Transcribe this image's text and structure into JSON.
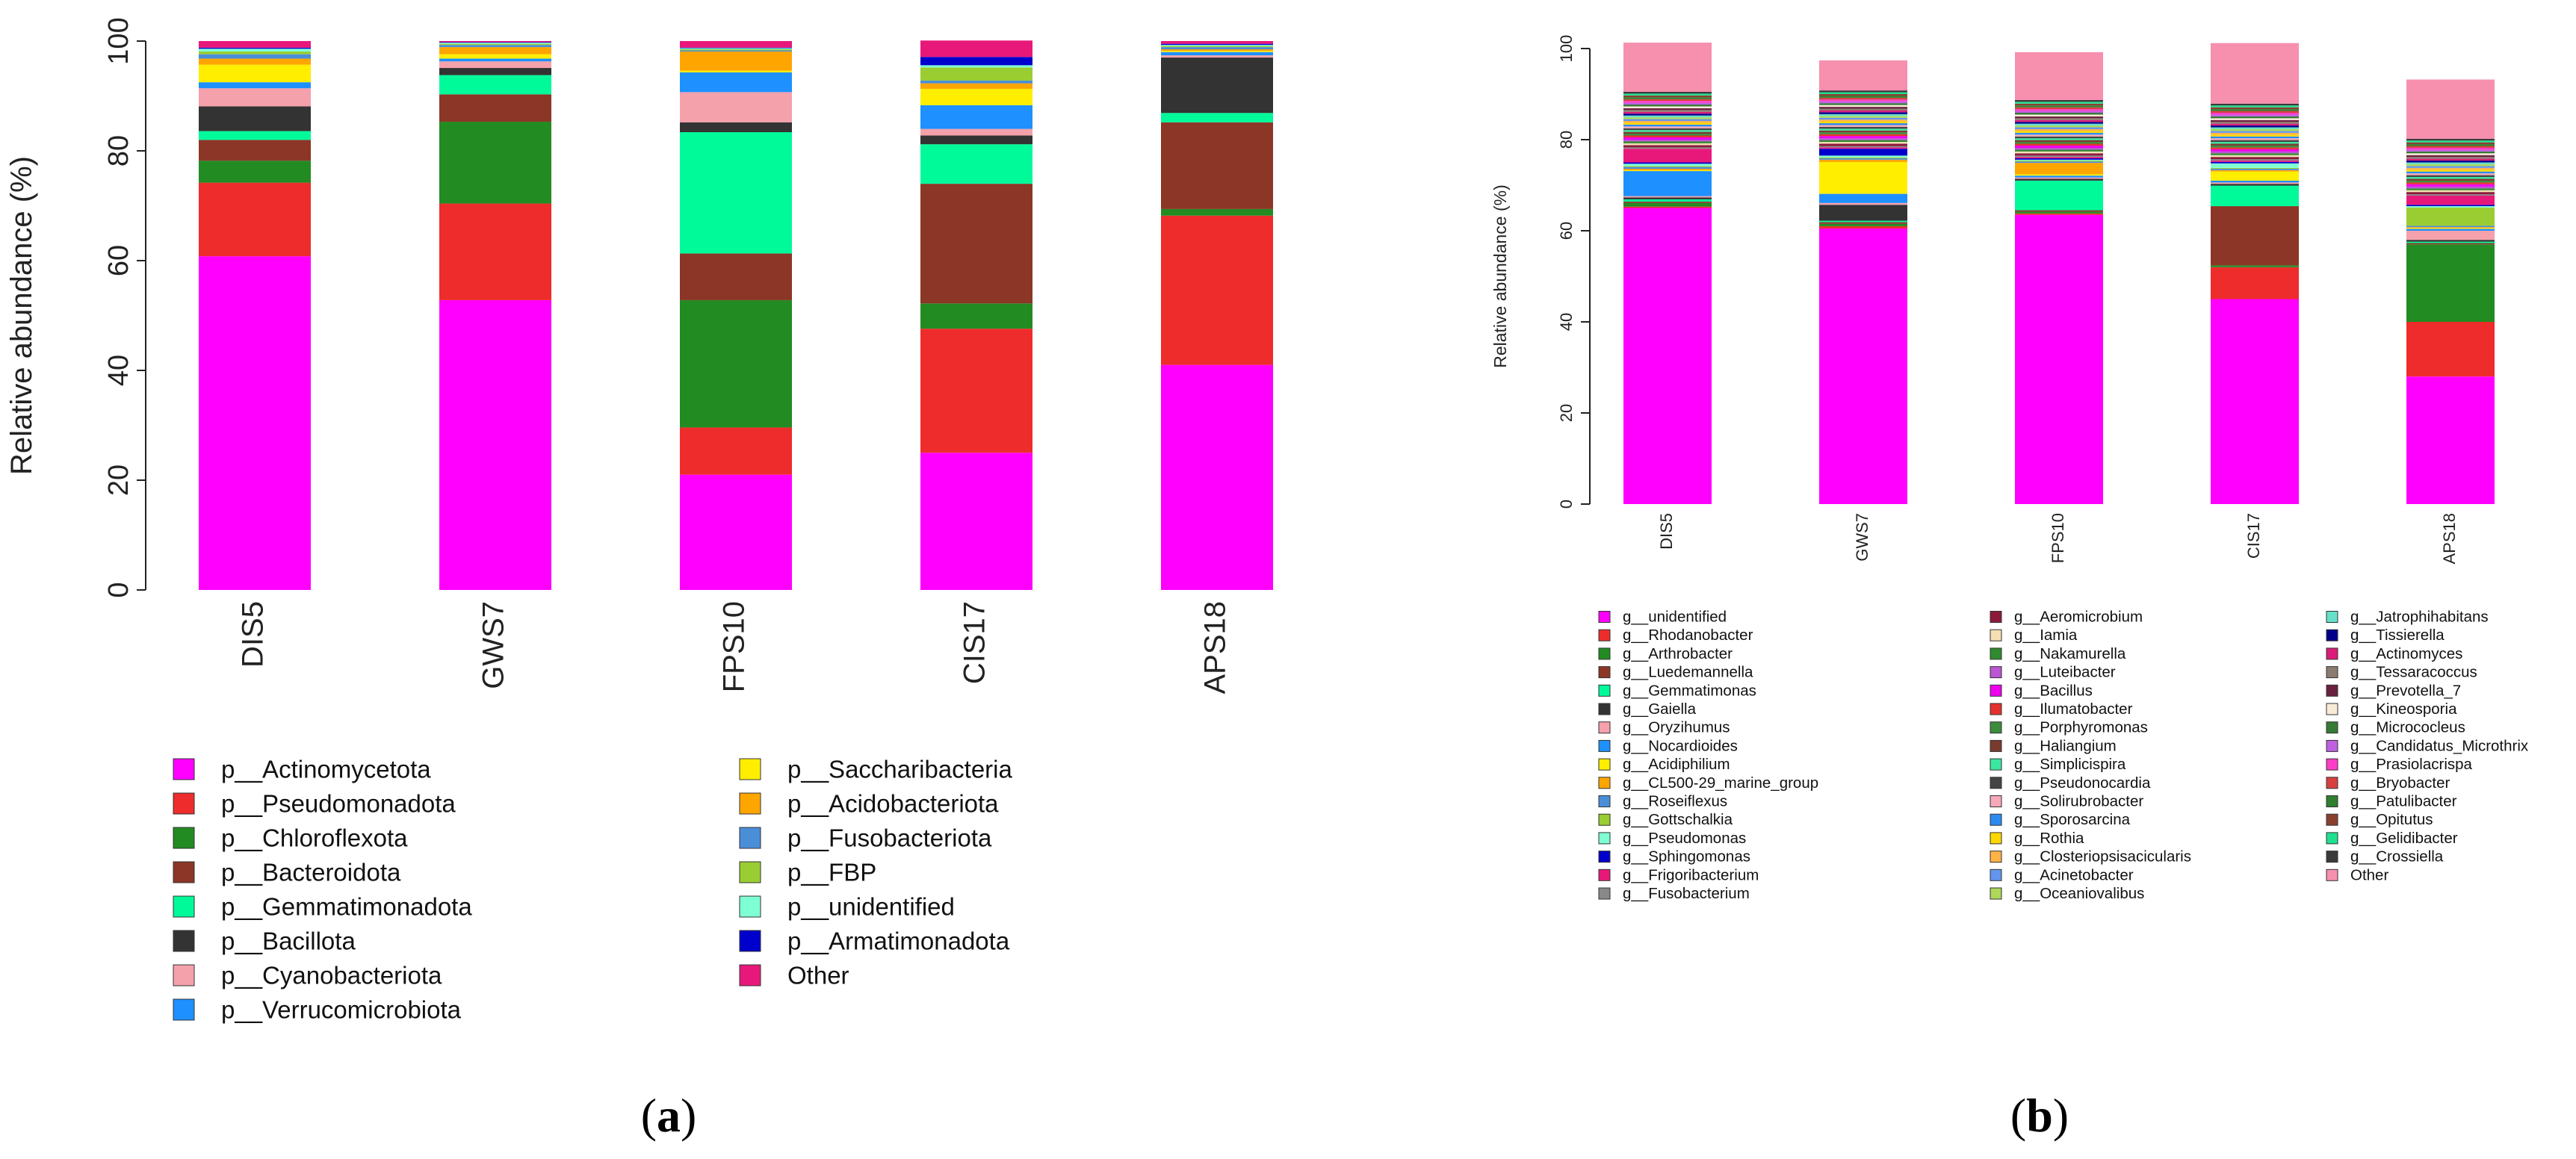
{
  "figure_labels": {
    "a": "a",
    "b": "b"
  },
  "chart_data": [
    {
      "type": "bar",
      "stacked": true,
      "panel": "a",
      "ylabel": "Relative abundance (%)",
      "ylim": [
        0,
        100
      ],
      "yticks": [
        "0",
        "20",
        "40",
        "60",
        "80",
        "100"
      ],
      "categories": [
        "DIS5",
        "GWS7",
        "FPS10",
        "CIS17",
        "APS18"
      ],
      "series": [
        {
          "name": "p__Actinomycetota",
          "color": "#FF00FF",
          "values": [
            60.8,
            52.8,
            21.0,
            25.0,
            41.0
          ]
        },
        {
          "name": "p__Pseudomonadota",
          "color": "#EE2C2C",
          "values": [
            13.4,
            17.6,
            8.6,
            22.6,
            27.2
          ]
        },
        {
          "name": "p__Chloroflexota",
          "color": "#228B22",
          "values": [
            4.0,
            14.9,
            23.2,
            4.6,
            1.2
          ]
        },
        {
          "name": "p__Bacteroidota",
          "color": "#8B3626",
          "values": [
            3.8,
            5.0,
            8.5,
            21.8,
            15.8
          ]
        },
        {
          "name": "p__Gemmatimonadota",
          "color": "#00FA9A",
          "values": [
            1.6,
            3.5,
            22.1,
            7.2,
            1.7
          ]
        },
        {
          "name": "p__Bacillota",
          "color": "#333333",
          "values": [
            4.5,
            1.3,
            1.8,
            1.6,
            10.1
          ]
        },
        {
          "name": "p__Cyanobacteriota",
          "color": "#F4A1AC",
          "values": [
            3.3,
            1.2,
            5.5,
            1.2,
            0.4
          ]
        },
        {
          "name": "p__Verrucomicrobiota",
          "color": "#1E90FF",
          "values": [
            1.1,
            0.5,
            3.6,
            4.3,
            0.6
          ]
        },
        {
          "name": "p__Saccharibacteria",
          "color": "#FFEE00",
          "values": [
            3.2,
            0.8,
            0.3,
            3.0,
            0.2
          ]
        },
        {
          "name": "p__Acidobacteriota",
          "color": "#FFA500",
          "values": [
            1.1,
            1.3,
            3.5,
            1.0,
            0.3
          ]
        },
        {
          "name": "p__Fusobacteriota",
          "color": "#4A8ED8",
          "values": [
            0.8,
            0.4,
            0.2,
            0.5,
            0.4
          ]
        },
        {
          "name": "p__FBP",
          "color": "#9ACD32",
          "values": [
            0.5,
            0.2,
            0.2,
            2.4,
            0.2
          ]
        },
        {
          "name": "p__unidentified",
          "color": "#7FFFD4",
          "values": [
            0.5,
            0.2,
            0.2,
            0.4,
            0.2
          ]
        },
        {
          "name": "p__Armatimonadota",
          "color": "#0000CD",
          "values": [
            0.2,
            0.1,
            0.1,
            1.5,
            0.2
          ]
        },
        {
          "name": "Other",
          "color": "#E8187A",
          "values": [
            1.2,
            0.2,
            1.2,
            3.0,
            0.5
          ]
        }
      ]
    },
    {
      "type": "bar",
      "stacked": true,
      "panel": "b",
      "ylabel": "Relative abundance (%)",
      "ylim": [
        0,
        100
      ],
      "yticks": [
        "0",
        "20",
        "40",
        "60",
        "80",
        "100"
      ],
      "categories": [
        "DIS5",
        "GWS7",
        "FPS10",
        "CIS17",
        "APS18"
      ],
      "series": [
        {
          "name": "g__unidentified",
          "color": "#FF00FF",
          "values": [
            65.0,
            60.5,
            63.5,
            45.0,
            28.0
          ]
        },
        {
          "name": "g__Rhodanobacter",
          "color": "#EE2C2C",
          "values": [
            0.3,
            0.5,
            0.3,
            7.0,
            12.0
          ]
        },
        {
          "name": "g__Arthrobacter",
          "color": "#228B22",
          "values": [
            0.8,
            0.5,
            0.4,
            0.4,
            17.0
          ]
        },
        {
          "name": "g__Luedemannella",
          "color": "#8B3626",
          "values": [
            0.3,
            0.4,
            0.3,
            13.0,
            0.3
          ]
        },
        {
          "name": "g__Gemmatimonas",
          "color": "#00FA9A",
          "values": [
            0.5,
            0.3,
            6.5,
            4.5,
            0.3
          ]
        },
        {
          "name": "g__Gaiella",
          "color": "#333333",
          "values": [
            0.4,
            3.5,
            0.4,
            0.4,
            0.4
          ]
        },
        {
          "name": "g__Oryzihumus",
          "color": "#F4A1AC",
          "values": [
            0.3,
            0.4,
            0.3,
            0.3,
            2.0
          ]
        },
        {
          "name": "g__Nocardioides",
          "color": "#1E90FF",
          "values": [
            5.5,
            2.0,
            0.4,
            0.4,
            0.4
          ]
        },
        {
          "name": "g__Acidiphilium",
          "color": "#FFEE00",
          "values": [
            0.2,
            7.0,
            0.3,
            2.0,
            0.2
          ]
        },
        {
          "name": "g__CL500-29_marine_group",
          "color": "#FFA500",
          "values": [
            0.3,
            0.5,
            2.5,
            0.3,
            0.2
          ]
        },
        {
          "name": "g__Roseiflexus",
          "color": "#4A8ED8",
          "values": [
            0.4,
            0.3,
            0.3,
            0.3,
            0.3
          ]
        },
        {
          "name": "g__Gottschalkia",
          "color": "#9ACD32",
          "values": [
            0.2,
            0.2,
            0.2,
            0.2,
            4.0
          ]
        },
        {
          "name": "g__Pseudomonas",
          "color": "#7FFFD4",
          "values": [
            0.5,
            0.4,
            0.2,
            1.0,
            0.3
          ]
        },
        {
          "name": "g__Sphingomonas",
          "color": "#0000CD",
          "values": [
            0.3,
            1.5,
            0.3,
            0.3,
            0.3
          ]
        },
        {
          "name": "g__Frigoribacterium",
          "color": "#E8187A",
          "values": [
            3.0,
            0.3,
            0.3,
            0.3,
            2.0
          ]
        },
        {
          "name": "g__Fusobacterium",
          "color": "#888888",
          "values": [
            0.3,
            0.3,
            0.3,
            0.3,
            0.3
          ]
        },
        {
          "name": "g__Aeromicrobium",
          "color": "#8B1A3A",
          "values": [
            0.5,
            0.5,
            0.5,
            0.5,
            0.5
          ]
        },
        {
          "name": "g__Iamia",
          "color": "#F5DEB3",
          "values": [
            0.4,
            0.4,
            0.4,
            0.4,
            0.4
          ]
        },
        {
          "name": "g__Nakamurella",
          "color": "#2E8B2E",
          "values": [
            0.4,
            0.4,
            0.4,
            0.4,
            0.4
          ]
        },
        {
          "name": "g__Luteibacter",
          "color": "#BA55D3",
          "values": [
            0.4,
            0.4,
            0.4,
            0.4,
            0.4
          ]
        },
        {
          "name": "g__Bacillus",
          "color": "#EE00EE",
          "values": [
            0.5,
            0.5,
            0.5,
            0.5,
            0.5
          ]
        },
        {
          "name": "g__Ilumatobacter",
          "color": "#E53030",
          "values": [
            0.4,
            0.4,
            0.4,
            0.4,
            0.4
          ]
        },
        {
          "name": "g__Porphyromonas",
          "color": "#3C8C3C",
          "values": [
            0.4,
            0.4,
            0.4,
            0.4,
            0.4
          ]
        },
        {
          "name": "g__Haliangium",
          "color": "#7A3B2E",
          "values": [
            0.4,
            0.4,
            0.4,
            0.4,
            0.4
          ]
        },
        {
          "name": "g__Simplicispira",
          "color": "#3CE6A0",
          "values": [
            0.4,
            0.4,
            0.4,
            0.4,
            0.4
          ]
        },
        {
          "name": "g__Pseudonocardia",
          "color": "#444444",
          "values": [
            0.4,
            0.4,
            0.4,
            0.4,
            0.4
          ]
        },
        {
          "name": "g__Solirubrobacter",
          "color": "#F7A8B8",
          "values": [
            0.4,
            0.4,
            0.4,
            0.4,
            0.4
          ]
        },
        {
          "name": "g__Sporosarcina",
          "color": "#2A8CF0",
          "values": [
            0.4,
            0.4,
            0.4,
            0.4,
            0.4
          ]
        },
        {
          "name": "g__Rothia",
          "color": "#FFD700",
          "values": [
            0.4,
            0.4,
            0.4,
            0.4,
            0.4
          ]
        },
        {
          "name": "g__Closteriopsisacicularis",
          "color": "#FFB347",
          "values": [
            0.4,
            0.4,
            0.4,
            0.4,
            0.4
          ]
        },
        {
          "name": "g__Acinetobacter",
          "color": "#6495ED",
          "values": [
            0.4,
            0.4,
            0.4,
            0.4,
            0.4
          ]
        },
        {
          "name": "g__Oceaniovalibus",
          "color": "#ADD85A",
          "values": [
            0.4,
            0.4,
            0.4,
            0.4,
            0.4
          ]
        },
        {
          "name": "g__Jatrophihabitans",
          "color": "#66E0C8",
          "values": [
            0.4,
            0.4,
            0.4,
            0.4,
            0.4
          ]
        },
        {
          "name": "g__Tissierella",
          "color": "#00008B",
          "values": [
            0.4,
            0.4,
            0.4,
            0.4,
            0.4
          ]
        },
        {
          "name": "g__Actinomyces",
          "color": "#DB1C7A",
          "values": [
            0.4,
            0.4,
            0.4,
            0.4,
            0.4
          ]
        },
        {
          "name": "g__Tessaracoccus",
          "color": "#8C7B70",
          "values": [
            0.4,
            0.4,
            0.4,
            0.4,
            0.4
          ]
        },
        {
          "name": "g__Prevotella_7",
          "color": "#6B2040",
          "values": [
            0.4,
            0.4,
            0.4,
            0.4,
            0.4
          ]
        },
        {
          "name": "g__Kineosporia",
          "color": "#FAEBD7",
          "values": [
            0.4,
            0.4,
            0.4,
            0.4,
            0.4
          ]
        },
        {
          "name": "g__Micrococleus",
          "color": "#357A35",
          "values": [
            0.4,
            0.4,
            0.4,
            0.4,
            0.4
          ]
        },
        {
          "name": "g__Candidatus_Microthrix",
          "color": "#C060E0",
          "values": [
            0.4,
            0.4,
            0.4,
            0.4,
            0.4
          ]
        },
        {
          "name": "g__Prasiolacrispa",
          "color": "#FF3EC8",
          "values": [
            0.4,
            0.4,
            0.4,
            0.4,
            0.4
          ]
        },
        {
          "name": "g__Bryobacter",
          "color": "#D84040",
          "values": [
            0.4,
            0.4,
            0.4,
            0.4,
            0.4
          ]
        },
        {
          "name": "g__Patulibacter",
          "color": "#2F7F2F",
          "values": [
            0.4,
            0.4,
            0.4,
            0.4,
            0.4
          ]
        },
        {
          "name": "g__Opitutus",
          "color": "#8A4030",
          "values": [
            0.4,
            0.4,
            0.4,
            0.4,
            0.4
          ]
        },
        {
          "name": "g__Gelidibacter",
          "color": "#20E090",
          "values": [
            0.4,
            0.4,
            0.4,
            0.4,
            0.4
          ]
        },
        {
          "name": "g__Crossiella",
          "color": "#3A3A3A",
          "values": [
            0.4,
            0.4,
            0.4,
            0.4,
            0.4
          ]
        },
        {
          "name": "Other",
          "color": "#F78FAF",
          "values": [
            10.8,
            6.6,
            10.5,
            13.3,
            13.0
          ]
        }
      ]
    }
  ]
}
